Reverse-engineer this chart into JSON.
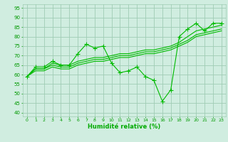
{
  "background_color": "#d0ede0",
  "grid_color": "#a0ccb4",
  "line_color": "#00bb00",
  "tick_color": "#009900",
  "xlabel": "Humidité relative (%)",
  "xlabel_color": "#00aa00",
  "xlim": [
    -0.5,
    23.5
  ],
  "ylim": [
    38,
    97
  ],
  "yticks": [
    40,
    45,
    50,
    55,
    60,
    65,
    70,
    75,
    80,
    85,
    90,
    95
  ],
  "xticks": [
    0,
    1,
    2,
    3,
    4,
    5,
    6,
    7,
    8,
    9,
    10,
    11,
    12,
    13,
    14,
    15,
    16,
    17,
    18,
    19,
    20,
    21,
    22,
    23
  ],
  "series_marker": [
    59,
    64,
    64,
    67,
    65,
    65,
    71,
    76,
    74,
    75,
    66,
    61,
    62,
    64,
    59,
    57,
    46,
    52,
    80,
    84,
    87,
    83,
    87,
    87
  ],
  "series_line1": [
    59,
    63,
    63,
    65,
    64,
    64,
    66,
    67,
    68,
    68,
    69,
    70,
    70,
    71,
    72,
    72,
    73,
    74,
    76,
    78,
    81,
    82,
    83,
    84
  ],
  "series_line2": [
    59,
    62,
    62,
    64,
    63,
    63,
    65,
    66,
    67,
    67,
    68,
    69,
    69,
    70,
    71,
    71,
    72,
    73,
    75,
    77,
    80,
    81,
    82,
    83
  ],
  "series_line3": [
    59,
    63,
    63,
    66,
    65,
    65,
    67,
    68,
    69,
    69,
    70,
    71,
    71,
    72,
    73,
    73,
    74,
    75,
    77,
    80,
    83,
    84,
    85,
    86
  ]
}
